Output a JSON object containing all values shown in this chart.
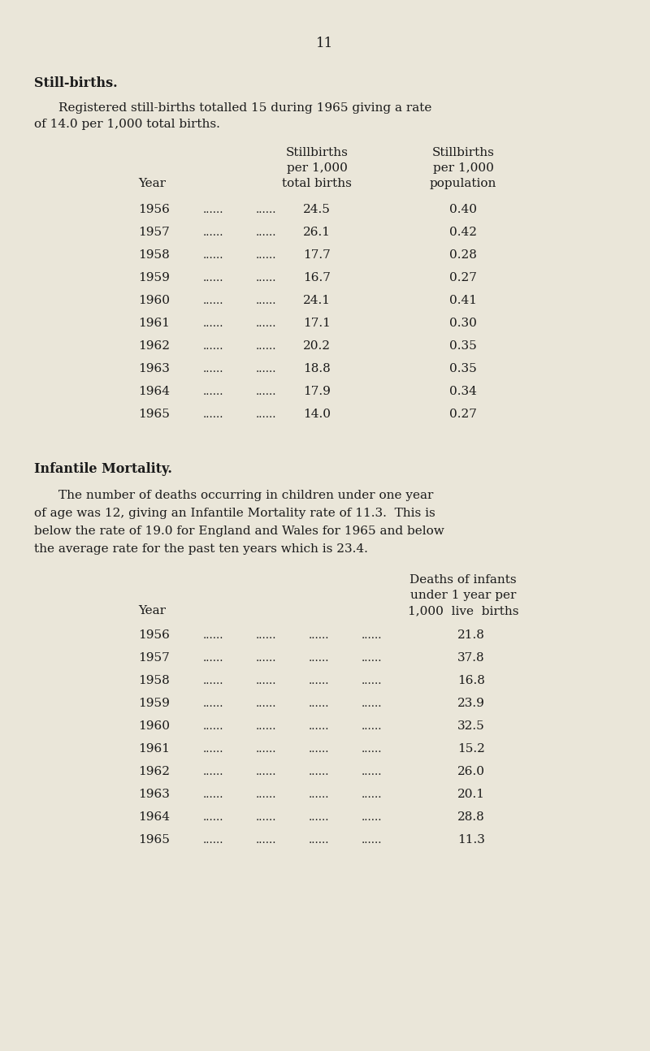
{
  "page_number": "11",
  "bg_color": "#eae6d9",
  "text_color": "#1a1a1a",
  "section1_title": "Still-births.",
  "section1_intro_line1": "Registered still-births totalled 15 during 1965 giving a rate",
  "section1_intro_line2": "of 14.0 per 1,000 total births.",
  "table1_years": [
    "1956",
    "1957",
    "1958",
    "1959",
    "1960",
    "1961",
    "1962",
    "1963",
    "1964",
    "1965"
  ],
  "table1_col2": [
    "24.5",
    "26.1",
    "17.7",
    "16.7",
    "24.1",
    "17.1",
    "20.2",
    "18.8",
    "17.9",
    "14.0"
  ],
  "table1_col3": [
    "0.40",
    "0.42",
    "0.28",
    "0.27",
    "0.41",
    "0.30",
    "0.35",
    "0.35",
    "0.34",
    "0.27"
  ],
  "section2_title": "Infantile Mortality.",
  "section2_intro_line1": "The number of deaths occurring in children under one year",
  "section2_intro_line2": "of age was 12, giving an Infantile Mortality rate of 11.3.  This is",
  "section2_intro_line3": "below the rate of 19.0 for England and Wales for 1965 and below",
  "section2_intro_line4": "the average rate for the past ten years which is 23.4.",
  "table2_years": [
    "1956",
    "1957",
    "1958",
    "1959",
    "1960",
    "1961",
    "1962",
    "1963",
    "1964",
    "1965"
  ],
  "table2_col2": [
    "21.8",
    "37.8",
    "16.8",
    "23.9",
    "32.5",
    "15.2",
    "26.0",
    "20.1",
    "28.8",
    "11.3"
  ],
  "fig_width": 8.0,
  "fig_height": 12.94,
  "dpi": 100
}
